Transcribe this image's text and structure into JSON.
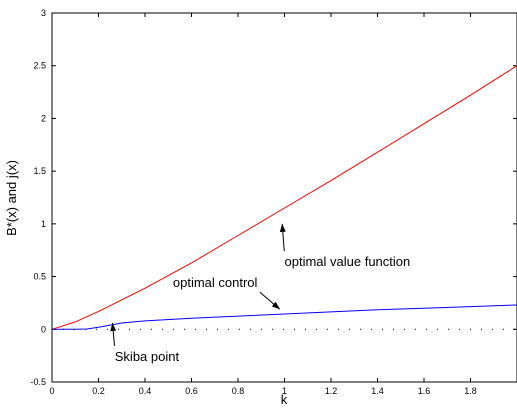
{
  "chart_data": {
    "type": "line",
    "xlabel": "k",
    "ylabel": "B*(x) and j(x)",
    "xlim": [
      0,
      2
    ],
    "ylim": [
      -0.5,
      3
    ],
    "xticks": [
      0,
      0.2,
      0.4,
      0.6,
      0.8,
      1,
      1.2,
      1.4,
      1.6,
      1.8
    ],
    "xtick_labels": [
      "0",
      "0.2",
      "0.4",
      "0.6",
      "0.8",
      "1",
      "1.2",
      "1.4",
      "1.6",
      "1.8"
    ],
    "yticks": [
      -0.5,
      0,
      0.5,
      1,
      1.5,
      2,
      2.5,
      3
    ],
    "ytick_labels": [
      "-0.5",
      "0",
      "0.5",
      "1",
      "1.5",
      "2",
      "2.5",
      "3"
    ],
    "grid": false,
    "series": [
      {
        "color": "#ff0000",
        "x": [
          0,
          0.1,
          0.2,
          0.3,
          0.4,
          0.6,
          0.8,
          1.0,
          1.2,
          1.4,
          1.6,
          1.8,
          2.0
        ],
        "y": [
          0,
          0.07,
          0.17,
          0.28,
          0.39,
          0.63,
          0.89,
          1.15,
          1.41,
          1.68,
          1.95,
          2.22,
          2.5
        ]
      },
      {
        "color": "#0000ff",
        "x": [
          0,
          0.1,
          0.15,
          0.2,
          0.25,
          0.3,
          0.4,
          0.6,
          0.8,
          1.0,
          1.2,
          1.4,
          1.6,
          1.8,
          2.0
        ],
        "y": [
          0,
          0,
          0.003,
          0.02,
          0.04,
          0.06,
          0.08,
          0.105,
          0.125,
          0.145,
          0.165,
          0.185,
          0.2,
          0.215,
          0.23
        ]
      },
      {
        "color": "#000000",
        "style": "dotted",
        "x": [
          0,
          2.0
        ],
        "y": [
          0,
          0
        ]
      }
    ],
    "annotations": [
      {
        "text": "optimal value function",
        "x": 1.0,
        "y": 0.6,
        "arrow_to": [
          0.99,
          1.0
        ]
      },
      {
        "text": "optimal control",
        "x": 0.52,
        "y": 0.4,
        "arrow_to": [
          0.98,
          0.19
        ]
      },
      {
        "text": "Skiba point",
        "x": 0.27,
        "y": -0.3,
        "arrow_to": [
          0.26,
          0.06
        ]
      }
    ]
  }
}
